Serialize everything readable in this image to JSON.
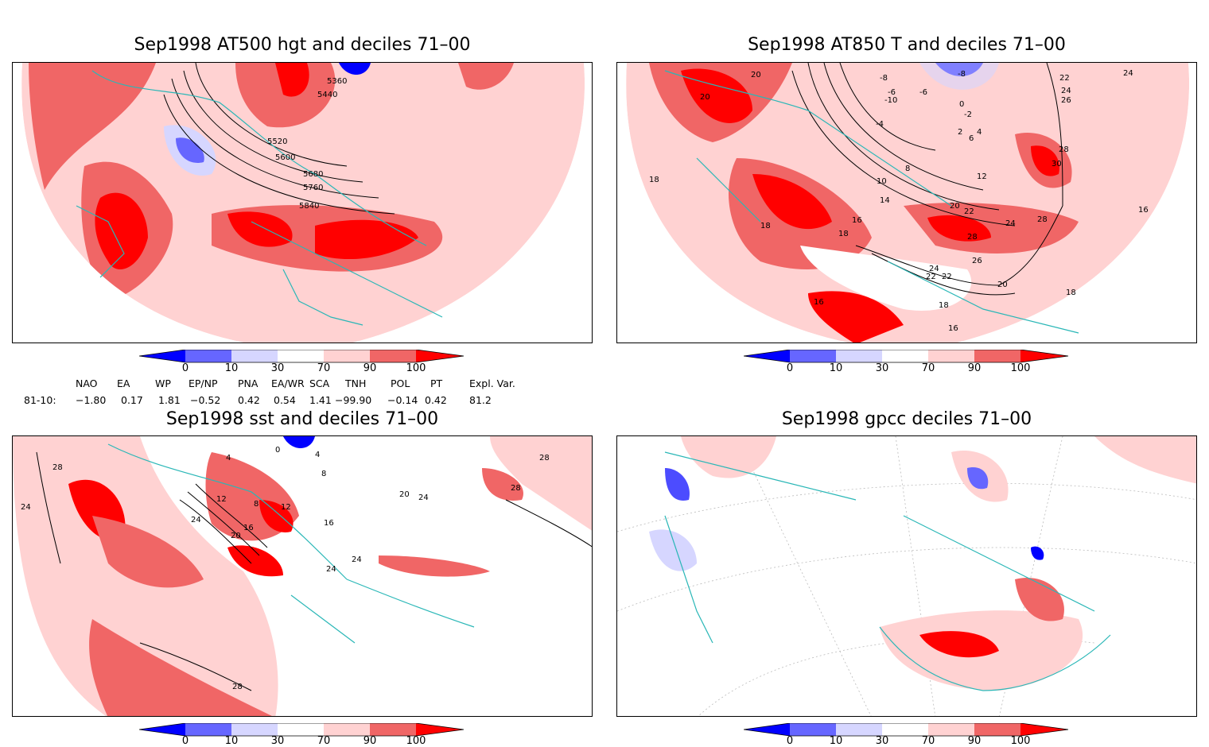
{
  "panels": [
    {
      "title": "Sep1998 AT500 hgt and deciles 71–00",
      "contour_labels": [
        "5360",
        "5440",
        "5520",
        "5600",
        "5680",
        "5760",
        "5840"
      ]
    },
    {
      "title": "Sep1998 AT850 T and deciles 71–00",
      "contour_labels": [
        "20",
        "20",
        "18",
        "18",
        "18",
        "16",
        "18",
        "16",
        "16",
        "18",
        "16",
        "-8",
        "-6",
        "-8",
        "-6",
        "-10",
        "-4",
        "-2",
        "0",
        "2",
        "4",
        "6",
        "8",
        "10",
        "12",
        "14",
        "20",
        "22",
        "24",
        "26",
        "28",
        "30",
        "28",
        "28",
        "22",
        "24",
        "26",
        "22",
        "24",
        "26",
        "20",
        "22",
        "24",
        "16",
        "18",
        "18"
      ]
    },
    {
      "title": "Sep1998 sst and deciles 71–00",
      "contour_labels": [
        "28",
        "24",
        "28",
        "4",
        "0",
        "4",
        "8",
        "8",
        "12",
        "12",
        "16",
        "16",
        "20",
        "24",
        "20",
        "24",
        "24",
        "24",
        "28",
        "28"
      ]
    },
    {
      "title": "Sep1998 gpcc deciles 71–00",
      "contour_labels": []
    }
  ],
  "colorbar": {
    "ticks": [
      "0",
      "10",
      "30",
      "70",
      "90",
      "100"
    ],
    "colors": [
      "#0000ff",
      "#6666ff",
      "#d6d6ff",
      "#ffffff",
      "#ffd2d2",
      "#f06666",
      "#ff0000"
    ]
  },
  "indices": {
    "headers": [
      "NAO",
      "EA",
      "WP",
      "EP/NP",
      "PNA",
      "EA/WR",
      "SCA",
      "TNH",
      "POL",
      "PT",
      "Expl. Var."
    ],
    "row_label": "81-10:",
    "values": [
      "−1.80",
      "0.17",
      "1.81",
      "−0.52",
      "0.42",
      "0.54",
      "1.41",
      "−99.90",
      "−0.14",
      "0.42",
      "81.2"
    ]
  },
  "colors": {
    "coast": "#2ab7b7",
    "strong_red": "#ff0000",
    "mid_red": "#f06666",
    "light_red": "#ffd2d2",
    "strong_blue": "#0000ff",
    "mid_blue": "#6666ff",
    "light_blue": "#d6d6ff"
  }
}
